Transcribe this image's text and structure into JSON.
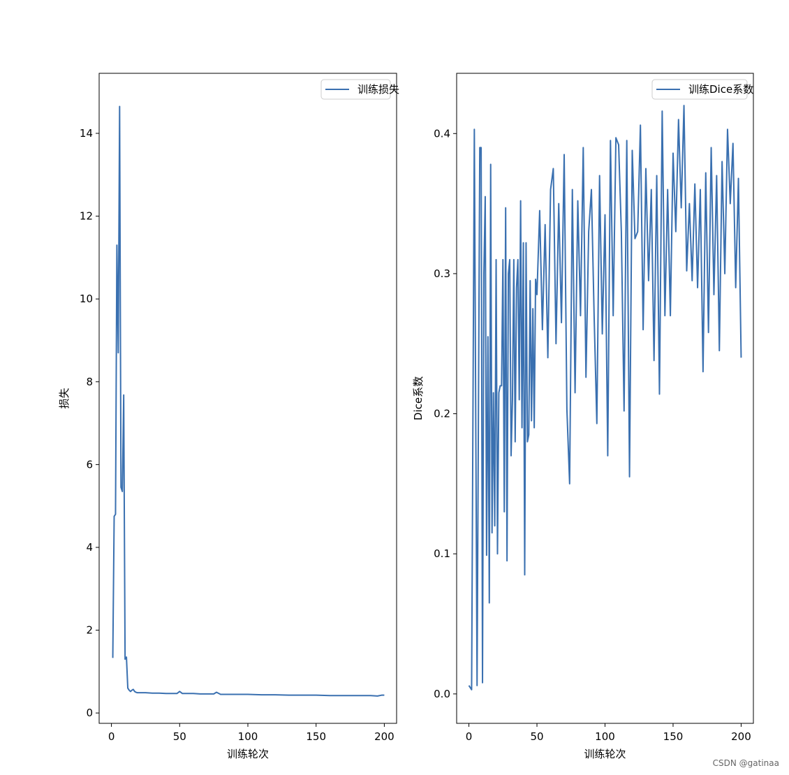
{
  "chart_data": [
    {
      "type": "line",
      "title": "",
      "xlabel": "训练轮次",
      "ylabel": "损失",
      "xlim": [
        -9,
        209
      ],
      "ylim": [
        -0.25,
        15.45
      ],
      "xticks": [
        0,
        50,
        100,
        150,
        200
      ],
      "yticks": [
        0,
        2,
        4,
        6,
        8,
        10,
        12,
        14
      ],
      "legend": "top-right",
      "grid": false,
      "series": [
        {
          "name": "训练损失",
          "color": "#3a70b0",
          "x": [
            1,
            2,
            3,
            4,
            5,
            6,
            7,
            8,
            9,
            10,
            11,
            12,
            13,
            14,
            15,
            16,
            17,
            18,
            19,
            20,
            25,
            30,
            35,
            40,
            45,
            48,
            50,
            52,
            55,
            60,
            65,
            70,
            75,
            77,
            80,
            90,
            100,
            110,
            120,
            130,
            140,
            150,
            160,
            170,
            180,
            190,
            195,
            198,
            200
          ],
          "y": [
            1.33,
            4.75,
            4.8,
            11.3,
            8.7,
            14.65,
            5.45,
            5.35,
            7.68,
            1.3,
            1.35,
            0.6,
            0.55,
            0.52,
            0.55,
            0.57,
            0.52,
            0.5,
            0.49,
            0.49,
            0.49,
            0.48,
            0.48,
            0.47,
            0.47,
            0.47,
            0.52,
            0.47,
            0.47,
            0.47,
            0.46,
            0.46,
            0.46,
            0.5,
            0.45,
            0.45,
            0.45,
            0.44,
            0.44,
            0.43,
            0.43,
            0.43,
            0.42,
            0.42,
            0.42,
            0.42,
            0.41,
            0.43,
            0.43
          ]
        }
      ]
    },
    {
      "type": "line",
      "title": "",
      "xlabel": "训练轮次",
      "ylabel": "Dice系数",
      "xlim": [
        -9,
        209
      ],
      "ylim": [
        -0.021,
        0.443
      ],
      "xticks": [
        0,
        50,
        100,
        150,
        200
      ],
      "yticks": [
        0.0,
        0.1,
        0.2,
        0.3,
        0.4
      ],
      "legend": "top-right",
      "grid": false,
      "series": [
        {
          "name": "训练Dice系数",
          "color": "#3a70b0",
          "x": [
            0,
            2,
            4,
            6,
            8,
            9,
            10,
            11,
            12,
            13,
            14,
            15,
            16,
            17,
            18,
            19,
            20,
            21,
            22,
            23,
            24,
            25,
            26,
            27,
            28,
            29,
            30,
            31,
            32,
            33,
            34,
            35,
            36,
            37,
            38,
            39,
            40,
            41,
            42,
            43,
            44,
            45,
            46,
            47,
            48,
            49,
            50,
            52,
            54,
            56,
            58,
            60,
            62,
            64,
            66,
            68,
            70,
            72,
            74,
            76,
            78,
            80,
            82,
            84,
            86,
            88,
            90,
            92,
            94,
            96,
            98,
            100,
            102,
            104,
            106,
            108,
            110,
            112,
            114,
            116,
            118,
            120,
            122,
            124,
            126,
            128,
            130,
            132,
            134,
            136,
            138,
            140,
            142,
            144,
            146,
            148,
            150,
            152,
            154,
            156,
            158,
            160,
            162,
            164,
            166,
            168,
            170,
            172,
            174,
            176,
            178,
            180,
            182,
            184,
            186,
            188,
            190,
            192,
            194,
            196,
            198,
            200
          ],
          "y": [
            0.006,
            0.003,
            0.403,
            0.006,
            0.39,
            0.39,
            0.008,
            0.3,
            0.355,
            0.099,
            0.255,
            0.065,
            0.378,
            0.115,
            0.215,
            0.12,
            0.31,
            0.1,
            0.215,
            0.22,
            0.22,
            0.31,
            0.13,
            0.347,
            0.095,
            0.3,
            0.31,
            0.17,
            0.21,
            0.31,
            0.18,
            0.29,
            0.31,
            0.21,
            0.352,
            0.19,
            0.322,
            0.085,
            0.322,
            0.18,
            0.185,
            0.295,
            0.195,
            0.275,
            0.19,
            0.296,
            0.285,
            0.345,
            0.26,
            0.335,
            0.24,
            0.36,
            0.375,
            0.25,
            0.35,
            0.265,
            0.385,
            0.203,
            0.15,
            0.36,
            0.215,
            0.352,
            0.27,
            0.39,
            0.226,
            0.33,
            0.36,
            0.27,
            0.193,
            0.37,
            0.257,
            0.342,
            0.17,
            0.395,
            0.27,
            0.397,
            0.392,
            0.33,
            0.202,
            0.395,
            0.155,
            0.388,
            0.325,
            0.33,
            0.406,
            0.26,
            0.375,
            0.295,
            0.36,
            0.238,
            0.37,
            0.214,
            0.416,
            0.27,
            0.36,
            0.27,
            0.386,
            0.33,
            0.41,
            0.347,
            0.42,
            0.302,
            0.35,
            0.295,
            0.364,
            0.29,
            0.36,
            0.23,
            0.372,
            0.258,
            0.39,
            0.285,
            0.37,
            0.245,
            0.38,
            0.3,
            0.403,
            0.35,
            0.393,
            0.29,
            0.368,
            0.24
          ]
        }
      ]
    }
  ],
  "watermark": "CSDN @gatinaa"
}
